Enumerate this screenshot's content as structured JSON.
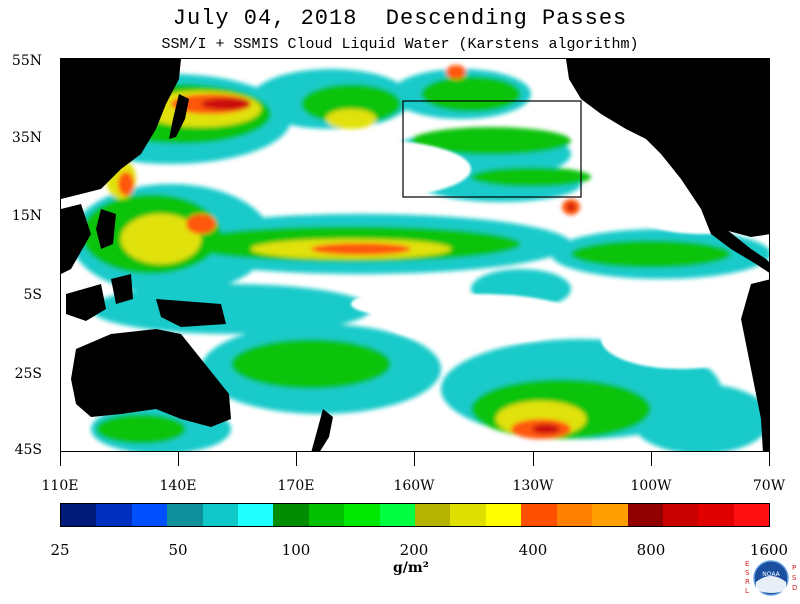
{
  "header": {
    "title": "July 04, 2018  Descending Passes",
    "subtitle": "SSM/I + SSMIS Cloud Liquid Water (Karstens algorithm)"
  },
  "map": {
    "lat_labels": [
      "55N",
      "35N",
      "15N",
      "5S",
      "25S",
      "45S"
    ],
    "lon_labels": [
      "110E",
      "140E",
      "170E",
      "160W",
      "130W",
      "100W",
      "70W"
    ],
    "background_color": "#ffffff",
    "land_color": "#000000",
    "box_color": "#000000"
  },
  "colorbar": {
    "colors": [
      "#001a7a",
      "#0030c0",
      "#0050ff",
      "#10909a",
      "#10c8c8",
      "#20ffff",
      "#008c00",
      "#00c000",
      "#00e800",
      "#00ff40",
      "#b4b400",
      "#e0e000",
      "#ffff00",
      "#ff5000",
      "#ff8000",
      "#ffa000",
      "#900000",
      "#c80000",
      "#e00000",
      "#ff1010"
    ],
    "labels": [
      "25",
      "50",
      "100",
      "200",
      "400",
      "800",
      "1600"
    ],
    "units": "g/m²"
  },
  "logo": {
    "left_letters": [
      "E",
      "S",
      "R",
      "L"
    ],
    "right_letters": [
      "P",
      "S",
      "D"
    ],
    "badge_text": "NOAA"
  }
}
